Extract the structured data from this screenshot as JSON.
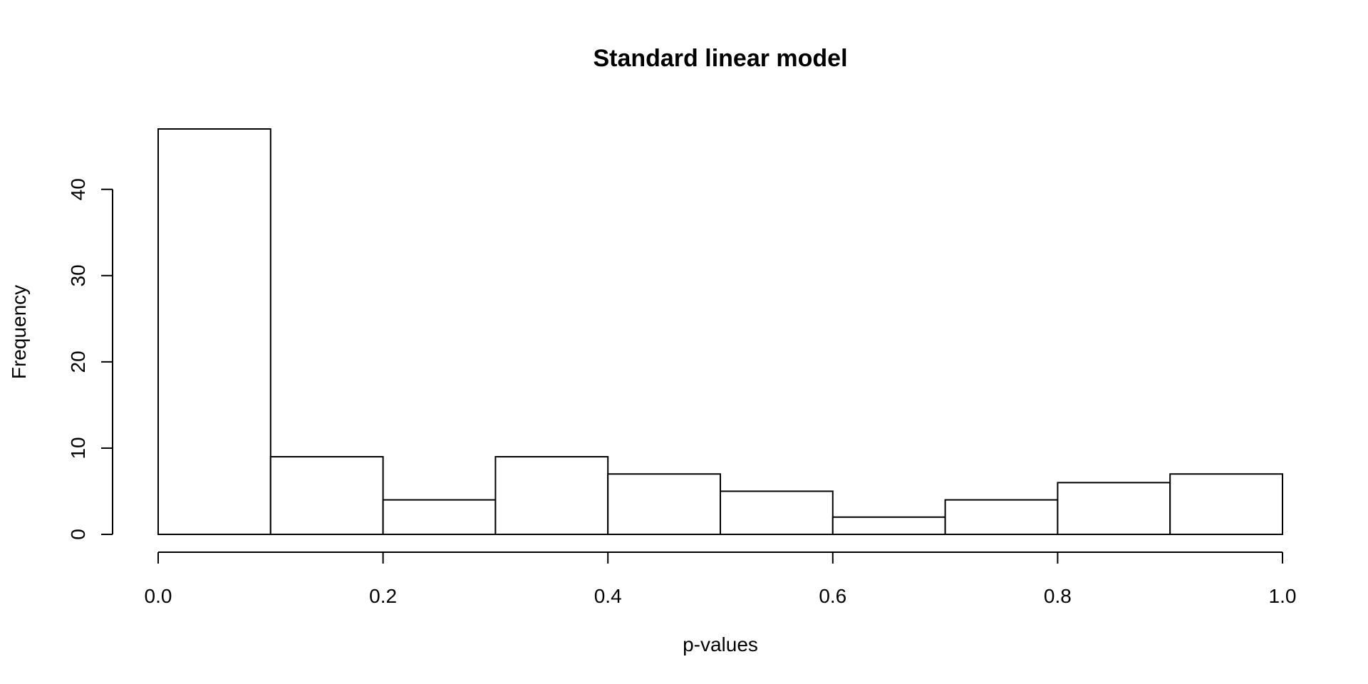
{
  "chart_data": {
    "type": "bar",
    "subtype": "histogram",
    "title": "Standard linear model",
    "xlabel": "p-values",
    "ylabel": "Frequency",
    "bins": [
      {
        "from": 0.0,
        "to": 0.1,
        "count": 47
      },
      {
        "from": 0.1,
        "to": 0.2,
        "count": 9
      },
      {
        "from": 0.2,
        "to": 0.3,
        "count": 4
      },
      {
        "from": 0.3,
        "to": 0.4,
        "count": 9
      },
      {
        "from": 0.4,
        "to": 0.5,
        "count": 7
      },
      {
        "from": 0.5,
        "to": 0.6,
        "count": 5
      },
      {
        "from": 0.6,
        "to": 0.7,
        "count": 2
      },
      {
        "from": 0.7,
        "to": 0.8,
        "count": 4
      },
      {
        "from": 0.8,
        "to": 0.9,
        "count": 6
      },
      {
        "from": 0.9,
        "to": 1.0,
        "count": 7
      }
    ],
    "xlim": [
      0.0,
      1.0
    ],
    "ylim": [
      0,
      47
    ],
    "xticks": [
      0.0,
      0.2,
      0.4,
      0.6,
      0.8,
      1.0
    ],
    "xtick_labels": [
      "0.0",
      "0.2",
      "0.4",
      "0.6",
      "0.8",
      "1.0"
    ],
    "yticks": [
      0,
      10,
      20,
      30,
      40
    ],
    "ytick_labels": [
      "0",
      "10",
      "20",
      "30",
      "40"
    ],
    "grid": false,
    "legend": "none",
    "bar_fill": "#ffffff",
    "bar_stroke": "#000000"
  }
}
